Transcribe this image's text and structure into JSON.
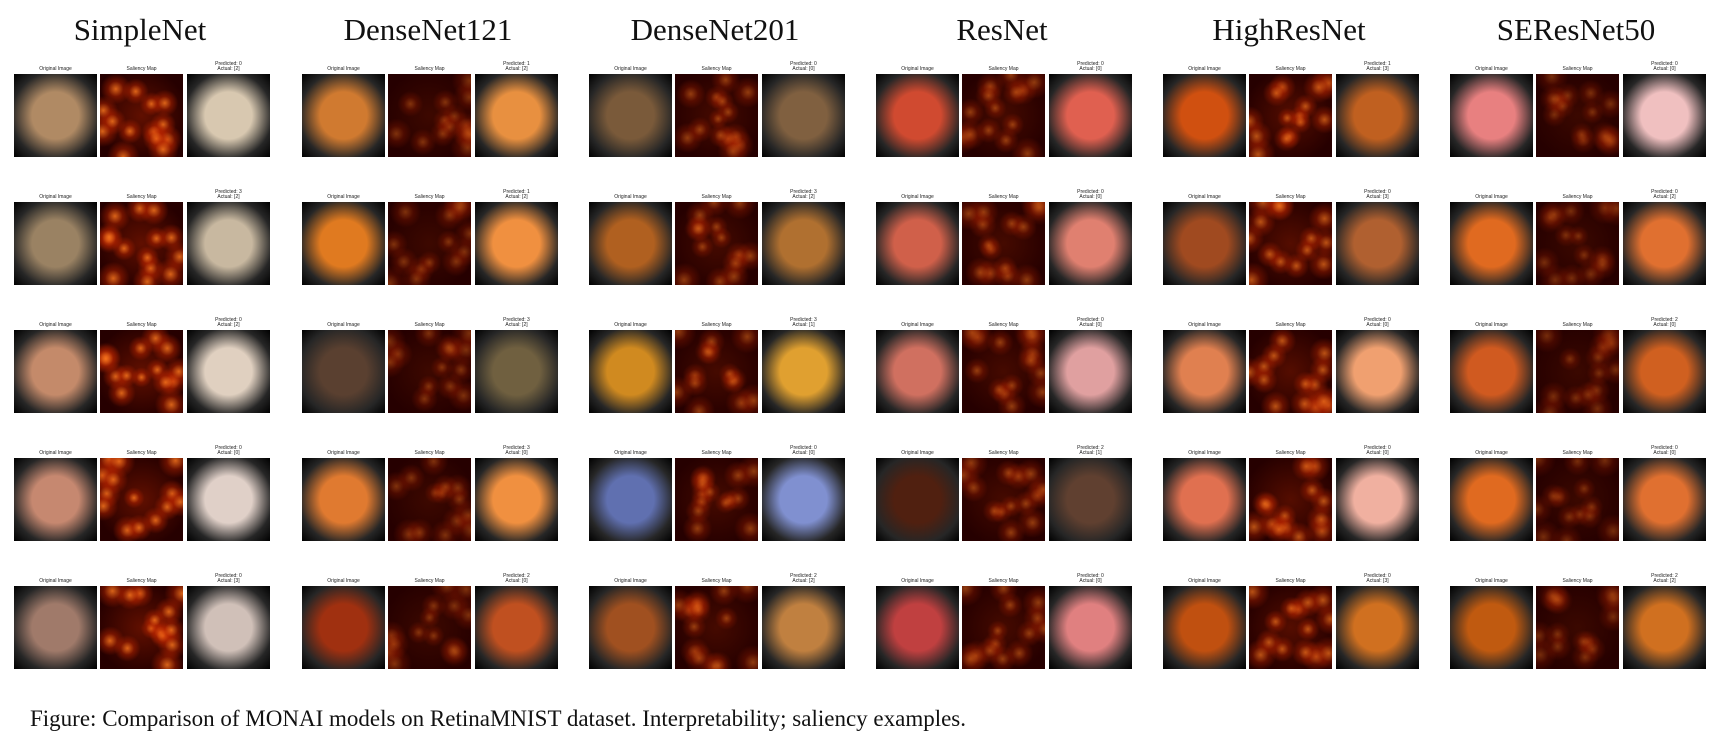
{
  "figure": {
    "models": [
      "SimpleNet",
      "DenseNet121",
      "DenseNet201",
      "ResNet",
      "HighResNet",
      "SEResNet50"
    ],
    "panel_labels": {
      "original": "Original Image",
      "saliency": "Saliency Map"
    },
    "predictions": [
      [
        "Predicted: 0\nActual: [2]",
        "Predicted: 3\nActual: [2]",
        "Predicted: 0\nActual: [2]",
        "Predicted: 0\nActual: [0]",
        "Predicted: 0\nActual: [3]"
      ],
      [
        "Predicted: 1\nActual: [2]",
        "Predicted: 1\nActual: [2]",
        "Predicted: 3\nActual: [2]",
        "Predicted: 3\nActual: [0]",
        "Predicted: 2\nActual: [0]"
      ],
      [
        "Predicted: 0\nActual: [0]",
        "Predicted: 3\nActual: [2]",
        "Predicted: 3\nActual: [1]",
        "Predicted: 0\nActual: [0]",
        "Predicted: 2\nActual: [2]"
      ],
      [
        "Predicted: 0\nActual: [0]",
        "Predicted: 0\nActual: [0]",
        "Predicted: 0\nActual: [0]",
        "Predicted: 2\nActual: [1]",
        "Predicted: 0\nActual: [0]"
      ],
      [
        "Predicted: 1\nActual: [3]",
        "Predicted: 0\nActual: [3]",
        "Predicted: 0\nActual: [0]",
        "Predicted: 0\nActual: [0]",
        "Predicted: 0\nActual: [3]"
      ],
      [
        "Predicted: 0\nActual: [0]",
        "Predicted: 0\nActual: [2]",
        "Predicted: 2\nActual: [0]",
        "Predicted: 0\nActual: [0]",
        "Predicted: 2\nActual: [2]"
      ]
    ],
    "caption": "Figure: Comparison of MONAI models on RetinaMNIST dataset. Interpretability; saliency examples."
  },
  "colors": {
    "saliency_hot": "#ff5a10",
    "saliency_dark": "#1a0000",
    "fundus_orange": "#e87a2a"
  }
}
